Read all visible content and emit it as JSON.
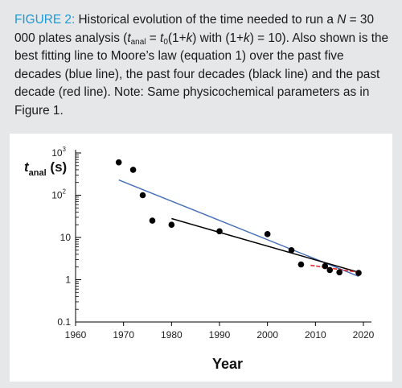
{
  "caption": {
    "label": "FIGURE 2:",
    "p1": " Historical evolution of the time needed to run a ",
    "n_var": "N",
    "p2": " = 30 000 plates analysis (",
    "t_var": "t",
    "t_sub": "anal",
    "p3": " = ",
    "t0_var": "t",
    "t0_sub": "0",
    "p4": "(1+",
    "k_var": "k",
    "p5": ") with (1+",
    "k2_var": "k",
    "p6": ") = 10). Also shown is the best fitting line to Moore’s law (equation 1) over the past five decades (blue line), the past four decades (black line) and the past decade (red line). Note: Same physicochemical parameters as in Figure 1."
  },
  "colors": {
    "caption_label": "#1a9ad6",
    "blue_line": "#4a72b8",
    "black_line": "#000000",
    "red_line": "#e8262b",
    "points": "#000000",
    "panel_bg": "#e6e7e8"
  },
  "chart_data": {
    "type": "scatter",
    "scale_y": "log",
    "xlim": [
      1960,
      2020
    ],
    "ylim": [
      0.1,
      1000
    ],
    "xticks": [
      1960,
      1970,
      1980,
      1990,
      2000,
      2010,
      2020
    ],
    "xtick_labels": [
      "1960",
      "1970",
      "1980",
      "1990",
      "2000",
      "2010",
      "2020"
    ],
    "yticks": [
      0.1,
      1,
      10,
      100,
      1000
    ],
    "ytick_labels": [
      {
        "base": "0.1",
        "sup": ""
      },
      {
        "base": "1",
        "sup": ""
      },
      {
        "base": "10",
        "sup": ""
      },
      {
        "base": "10",
        "sup": "2"
      },
      {
        "base": "10",
        "sup": "3"
      }
    ],
    "xlabel": "Year",
    "ylabel": {
      "main": "t",
      "sub": "anal",
      "unit": " (s)"
    },
    "points": [
      {
        "x": 1969,
        "y": 600
      },
      {
        "x": 1972,
        "y": 400
      },
      {
        "x": 1974,
        "y": 100
      },
      {
        "x": 1976,
        "y": 25
      },
      {
        "x": 1980,
        "y": 20
      },
      {
        "x": 1990,
        "y": 14
      },
      {
        "x": 2000,
        "y": 12
      },
      {
        "x": 2005,
        "y": 5
      },
      {
        "x": 2007,
        "y": 2.3
      },
      {
        "x": 2012,
        "y": 2.1
      },
      {
        "x": 2013,
        "y": 1.7
      },
      {
        "x": 2015,
        "y": 1.5
      },
      {
        "x": 2019,
        "y": 1.45
      }
    ],
    "fit_lines": [
      {
        "color": "#4a72b8",
        "x": [
          1969,
          2019
        ],
        "y": [
          230,
          1.2
        ]
      },
      {
        "color": "#000000",
        "x": [
          1980,
          2019
        ],
        "y": [
          28,
          1.5
        ]
      },
      {
        "color": "#e8262b",
        "x": [
          2009,
          2019
        ],
        "y": [
          2.2,
          1.5
        ]
      }
    ]
  }
}
